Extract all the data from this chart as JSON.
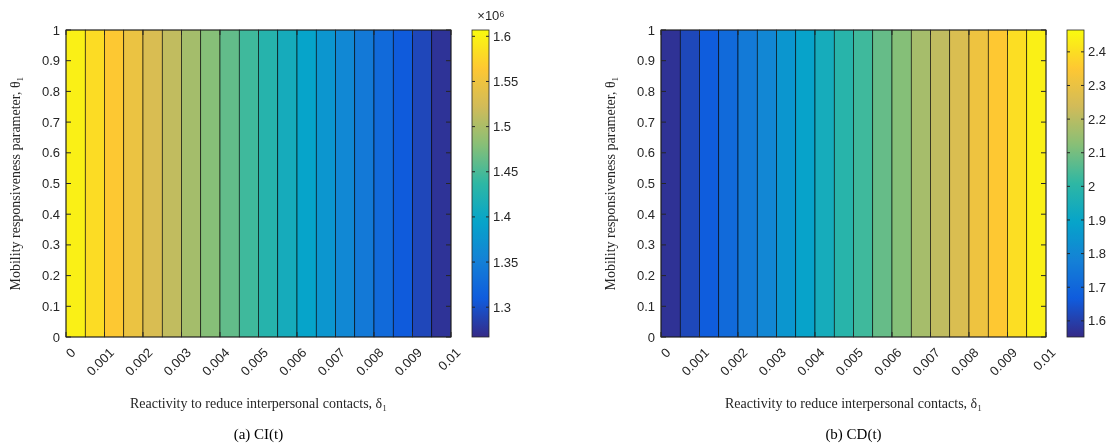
{
  "chart_data": [
    {
      "type": "heatmap",
      "title": "(a) CI(t)",
      "xlabel": "Reactivity to reduce interpersonal contacts, δ₁",
      "ylabel": "Mobility responsiveness parameter, θ₁",
      "clabel": "×10⁶",
      "x": [
        0.00025,
        0.00075,
        0.00125,
        0.00175,
        0.00225,
        0.00275,
        0.00325,
        0.00375,
        0.00425,
        0.00475,
        0.00525,
        0.00575,
        0.00625,
        0.00675,
        0.00725,
        0.00775,
        0.00825,
        0.00875,
        0.00925,
        0.00975
      ],
      "cells": [
        [
          1.598,
          1.581,
          1.564,
          1.547,
          1.53,
          1.513,
          1.496,
          1.479,
          1.462,
          1.445,
          1.428,
          1.411,
          1.394,
          1.377,
          1.36,
          1.343,
          1.326,
          1.309,
          1.292,
          1.275
        ]
      ],
      "xlim": [
        0,
        0.01
      ],
      "xticks": [
        0,
        0.001,
        0.002,
        0.003,
        0.004,
        0.005,
        0.006,
        0.007,
        0.008,
        0.009,
        0.01
      ],
      "ylim": [
        0,
        1
      ],
      "yticks": [
        0,
        0.1,
        0.2,
        0.3,
        0.4,
        0.5,
        0.6,
        0.7,
        0.8,
        0.9,
        1
      ],
      "clim": [
        1.267,
        1.607
      ],
      "cticks": [
        1.3,
        1.35,
        1.4,
        1.45,
        1.5,
        1.55,
        1.6
      ]
    },
    {
      "type": "heatmap",
      "title": "(b) CD(t)",
      "xlabel": "Reactivity to reduce interpersonal contacts, δ₁",
      "ylabel": "Mobility responsiveness parameter, θ₁",
      "x": [
        0.00025,
        0.00075,
        0.00125,
        0.00175,
        0.00225,
        0.00275,
        0.00325,
        0.00375,
        0.00425,
        0.00475,
        0.00525,
        0.00575,
        0.00625,
        0.00675,
        0.00725,
        0.00775,
        0.00825,
        0.00875,
        0.00925,
        0.00975
      ],
      "cells": [
        [
          1.57,
          1.62,
          1.67,
          1.71,
          1.76,
          1.8,
          1.85,
          1.89,
          1.94,
          1.99,
          2.03,
          2.08,
          2.12,
          2.17,
          2.21,
          2.26,
          2.31,
          2.35,
          2.4,
          2.44
        ]
      ],
      "xlim": [
        0,
        0.01
      ],
      "xticks": [
        0,
        0.001,
        0.002,
        0.003,
        0.004,
        0.005,
        0.006,
        0.007,
        0.008,
        0.009,
        0.01
      ],
      "ylim": [
        0,
        1
      ],
      "yticks": [
        0,
        0.1,
        0.2,
        0.3,
        0.4,
        0.5,
        0.6,
        0.7,
        0.8,
        0.9,
        1
      ],
      "clim": [
        1.552,
        2.465
      ],
      "cticks": [
        1.6,
        1.7,
        1.8,
        1.9,
        2,
        2.1,
        2.2,
        2.3,
        2.4
      ]
    }
  ]
}
